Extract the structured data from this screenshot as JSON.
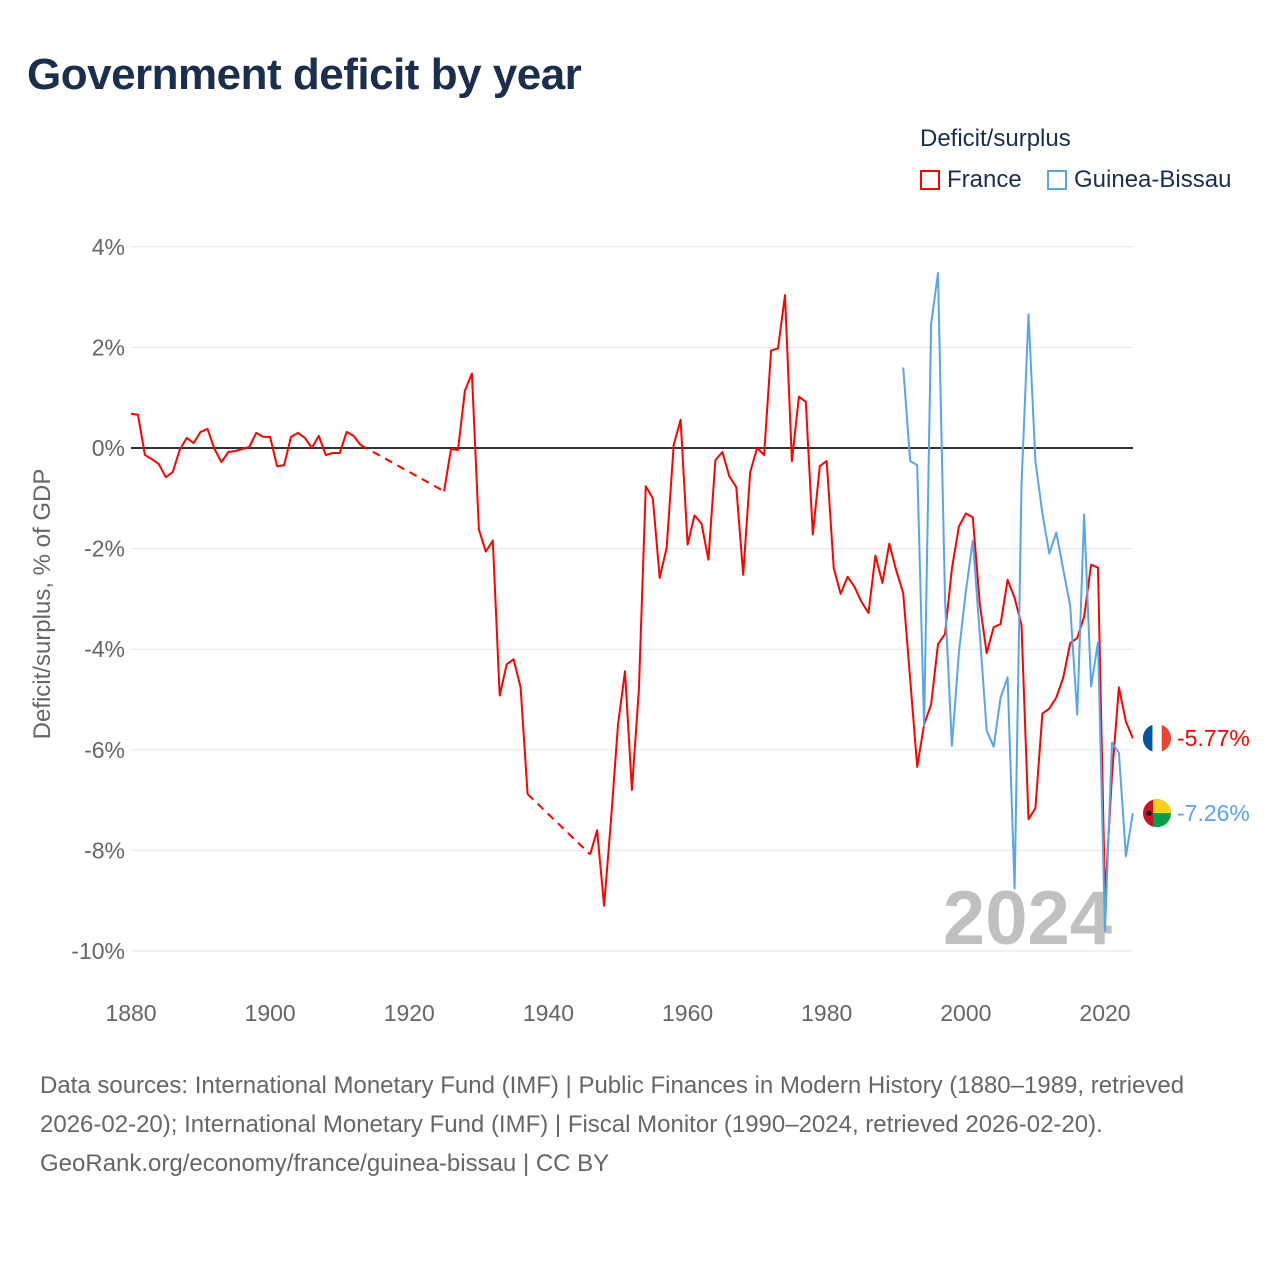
{
  "title": "Government deficit by year",
  "legend": {
    "title": "Deficit/surplus",
    "items": [
      {
        "name": "France",
        "color": "#ff0000"
      },
      {
        "name": "Guinea-Bissau",
        "color": "#5aa5ea"
      }
    ]
  },
  "watermark_year": "2024",
  "footer": {
    "sources": "Data sources: International Monetary Fund (IMF) | Public Finances in Modern History (1880–1989, retrieved 2026-02-20); International Monetary Fund (IMF) | Fiscal Monitor (1990–2024, retrieved 2026-02-20).",
    "credit": "GeoRank.org/economy/france/guinea-bissau | CC BY"
  },
  "chart_data": {
    "type": "line",
    "title": "Government deficit by year",
    "xlabel": "",
    "ylabel": "Deficit/surplus, % of GDP",
    "xlim": [
      1880,
      2024
    ],
    "ylim": [
      -10,
      4
    ],
    "xticks": [
      1880,
      1900,
      1920,
      1940,
      1960,
      1980,
      2000,
      2020
    ],
    "xtick_labels": [
      "1880",
      "1900",
      "1920",
      "1940",
      "1960",
      "1980",
      "2000",
      "2020"
    ],
    "yticks": [
      4,
      2,
      0,
      -2,
      -4,
      -6,
      -8,
      -10
    ],
    "ytick_labels": [
      "4%",
      "2%",
      "0%",
      "-2%",
      "-4%",
      "-6%",
      "-8%",
      "-10%"
    ],
    "grid": true,
    "legend_position": "top-right",
    "series": [
      {
        "name": "France",
        "color": "#ff0000",
        "end_label": "-5.77%",
        "points": [
          [
            1880,
            0.68
          ],
          [
            1881,
            0.66
          ],
          [
            1882,
            -0.14
          ],
          [
            1883,
            -0.22
          ],
          [
            1884,
            -0.32
          ],
          [
            1885,
            -0.58
          ],
          [
            1886,
            -0.48
          ],
          [
            1887,
            -0.04
          ],
          [
            1888,
            0.2
          ],
          [
            1889,
            0.1
          ],
          [
            1890,
            0.32
          ],
          [
            1891,
            0.38
          ],
          [
            1892,
            -0.02
          ],
          [
            1893,
            -0.28
          ],
          [
            1894,
            -0.08
          ],
          [
            1895,
            -0.06
          ],
          [
            1896,
            -0.02
          ],
          [
            1897,
            0.02
          ],
          [
            1898,
            0.3
          ],
          [
            1899,
            0.22
          ],
          [
            1900,
            0.22
          ],
          [
            1901,
            -0.36
          ],
          [
            1902,
            -0.34
          ],
          [
            1903,
            0.22
          ],
          [
            1904,
            0.3
          ],
          [
            1905,
            0.2
          ],
          [
            1906,
            0.0
          ],
          [
            1907,
            0.24
          ],
          [
            1908,
            -0.14
          ],
          [
            1909,
            -0.1
          ],
          [
            1910,
            -0.1
          ],
          [
            1911,
            0.32
          ],
          [
            1912,
            0.24
          ],
          [
            1913,
            0.06
          ],
          [
            1925,
            -0.86
          ],
          [
            1926,
            -0.02
          ],
          [
            1927,
            -0.04
          ],
          [
            1928,
            1.14
          ],
          [
            1929,
            1.48
          ],
          [
            1930,
            -1.62
          ],
          [
            1931,
            -2.06
          ],
          [
            1932,
            -1.84
          ],
          [
            1933,
            -4.92
          ],
          [
            1934,
            -4.3
          ],
          [
            1935,
            -4.2
          ],
          [
            1936,
            -4.76
          ],
          [
            1937,
            -6.88
          ],
          [
            1946,
            -8.08
          ],
          [
            1947,
            -7.6
          ],
          [
            1948,
            -9.1
          ],
          [
            1949,
            -7.4
          ],
          [
            1950,
            -5.5
          ],
          [
            1951,
            -4.44
          ],
          [
            1952,
            -6.8
          ],
          [
            1953,
            -4.8
          ],
          [
            1954,
            -0.76
          ],
          [
            1955,
            -1.0
          ],
          [
            1956,
            -2.58
          ],
          [
            1957,
            -1.98
          ],
          [
            1958,
            0.06
          ],
          [
            1959,
            0.56
          ],
          [
            1960,
            -1.92
          ],
          [
            1961,
            -1.34
          ],
          [
            1962,
            -1.5
          ],
          [
            1963,
            -2.22
          ],
          [
            1964,
            -0.24
          ],
          [
            1965,
            -0.08
          ],
          [
            1966,
            -0.56
          ],
          [
            1967,
            -0.78
          ],
          [
            1968,
            -2.52
          ],
          [
            1969,
            -0.48
          ],
          [
            1970,
            0.0
          ],
          [
            1971,
            -0.14
          ],
          [
            1972,
            1.94
          ],
          [
            1973,
            1.98
          ],
          [
            1974,
            3.04
          ],
          [
            1975,
            -0.26
          ],
          [
            1976,
            1.02
          ],
          [
            1977,
            0.92
          ],
          [
            1978,
            -1.72
          ],
          [
            1979,
            -0.36
          ],
          [
            1980,
            -0.26
          ],
          [
            1981,
            -2.38
          ],
          [
            1982,
            -2.9
          ],
          [
            1983,
            -2.56
          ],
          [
            1984,
            -2.76
          ],
          [
            1985,
            -3.06
          ],
          [
            1986,
            -3.28
          ],
          [
            1987,
            -2.14
          ],
          [
            1988,
            -2.68
          ],
          [
            1989,
            -1.9
          ],
          [
            1990,
            -2.44
          ],
          [
            1991,
            -2.88
          ],
          [
            1992,
            -4.6
          ],
          [
            1993,
            -6.34
          ],
          [
            1994,
            -5.5
          ],
          [
            1995,
            -5.1
          ],
          [
            1996,
            -3.9
          ],
          [
            1997,
            -3.7
          ],
          [
            1998,
            -2.4
          ],
          [
            1999,
            -1.56
          ],
          [
            2000,
            -1.3
          ],
          [
            2001,
            -1.38
          ],
          [
            2002,
            -3.1
          ],
          [
            2003,
            -4.08
          ],
          [
            2004,
            -3.56
          ],
          [
            2005,
            -3.5
          ],
          [
            2006,
            -2.62
          ],
          [
            2007,
            -2.98
          ],
          [
            2008,
            -3.52
          ],
          [
            2009,
            -7.38
          ],
          [
            2010,
            -7.16
          ],
          [
            2011,
            -5.28
          ],
          [
            2012,
            -5.18
          ],
          [
            2013,
            -4.96
          ],
          [
            2014,
            -4.56
          ],
          [
            2015,
            -3.88
          ],
          [
            2016,
            -3.78
          ],
          [
            2017,
            -3.36
          ],
          [
            2018,
            -2.32
          ],
          [
            2019,
            -2.38
          ],
          [
            2020,
            -8.96
          ],
          [
            2021,
            -6.5
          ],
          [
            2022,
            -4.76
          ],
          [
            2023,
            -5.44
          ],
          [
            2024,
            -5.77
          ]
        ]
      },
      {
        "name": "Guinea-Bissau",
        "color": "#5aa5ea",
        "end_label": "-7.26%",
        "points": [
          [
            1991,
            1.6
          ],
          [
            1992,
            -0.26
          ],
          [
            1993,
            -0.34
          ],
          [
            1994,
            -5.52
          ],
          [
            1995,
            2.46
          ],
          [
            1996,
            3.48
          ],
          [
            1997,
            -3.0
          ],
          [
            1998,
            -5.92
          ],
          [
            1999,
            -4.06
          ],
          [
            2000,
            -2.84
          ],
          [
            2001,
            -1.84
          ],
          [
            2002,
            -3.7
          ],
          [
            2003,
            -5.62
          ],
          [
            2004,
            -5.94
          ],
          [
            2005,
            -4.96
          ],
          [
            2006,
            -4.56
          ],
          [
            2007,
            -8.76
          ],
          [
            2008,
            -0.74
          ],
          [
            2009,
            2.66
          ],
          [
            2010,
            -0.26
          ],
          [
            2011,
            -1.3
          ],
          [
            2012,
            -2.1
          ],
          [
            2013,
            -1.68
          ],
          [
            2014,
            -2.42
          ],
          [
            2015,
            -3.14
          ],
          [
            2016,
            -5.3
          ],
          [
            2017,
            -1.32
          ],
          [
            2018,
            -4.74
          ],
          [
            2019,
            -3.86
          ],
          [
            2020,
            -9.6
          ],
          [
            2021,
            -5.86
          ],
          [
            2022,
            -6.06
          ],
          [
            2023,
            -8.12
          ],
          [
            2024,
            -7.26
          ]
        ]
      }
    ]
  }
}
